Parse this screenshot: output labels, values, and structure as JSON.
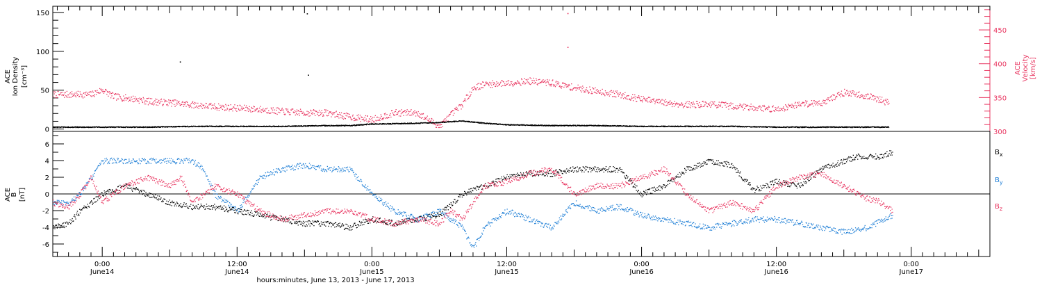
{
  "colors": {
    "density": "#000000",
    "velocity": "#e8345f",
    "bx": "#000000",
    "by": "#1f7fd6",
    "bz": "#e8345f",
    "frame": "#000000"
  },
  "x_axis": {
    "title": "hours:minutes, June 13, 2013 - June 17, 2013",
    "ticks": [
      {
        "time": "0:00",
        "date": "June14",
        "hour": 24
      },
      {
        "time": "12:00",
        "date": "June14",
        "hour": 36
      },
      {
        "time": "0:00",
        "date": "June15",
        "hour": 48
      },
      {
        "time": "12:00",
        "date": "June15",
        "hour": 60
      },
      {
        "time": "0:00",
        "date": "June16",
        "hour": 72
      },
      {
        "time": "12:00",
        "date": "June16",
        "hour": 84
      },
      {
        "time": "0:00",
        "date": "June17",
        "hour": 96
      }
    ]
  },
  "top_panel": {
    "left_label_lines": [
      "ACE",
      "Ion Density",
      "[cm⁻³]"
    ],
    "right_label_lines": [
      "ACE",
      "Velocity",
      "[km/s]"
    ],
    "left_ticks": [
      "0",
      "50",
      "100",
      "150"
    ],
    "right_ticks": [
      "300",
      "350",
      "400",
      "450"
    ]
  },
  "bottom_panel": {
    "left_label_lines": [
      "ACE",
      "B",
      "[nT]"
    ],
    "left_ticks": [
      "-6",
      "-4",
      "-2",
      "0",
      "2",
      "4",
      "6"
    ],
    "legend": [
      {
        "base": "B",
        "sub": "x",
        "color": "#000000"
      },
      {
        "base": "B",
        "sub": "y",
        "color": "#1f7fd6"
      },
      {
        "base": "B",
        "sub": "z",
        "color": "#e8345f"
      }
    ]
  },
  "chart_data": [
    {
      "type": "scatter",
      "title": "",
      "xlabel": "hours:minutes, June 13, 2013 - June 17, 2013",
      "x_unit": "hours since 2013-06-13 00:00",
      "xlim": [
        19.6,
        103
      ],
      "y_left": {
        "label": "ACE Ion Density [cm⁻³]",
        "lim": [
          -3,
          158
        ]
      },
      "y_right": {
        "label": "ACE Velocity [km/s]",
        "lim": [
          300,
          485
        ]
      },
      "series": [
        {
          "name": "Ion Density",
          "axis": "left",
          "color": "#000000",
          "x": [
            19.6,
            24,
            28,
            32,
            36,
            40,
            44,
            46,
            48,
            52,
            54,
            56,
            58,
            60,
            64,
            68,
            72,
            76,
            80,
            84,
            88,
            90,
            94
          ],
          "y": [
            3,
            3,
            3,
            4,
            4,
            4,
            5,
            5,
            7,
            8,
            9,
            11,
            8,
            6,
            5,
            5,
            4,
            4,
            4,
            3,
            3,
            3,
            3
          ],
          "outliers": [
            [
              30.9,
              87
            ],
            [
              42.3,
              70
            ],
            [
              42.2,
              149
            ]
          ]
        },
        {
          "name": "Velocity",
          "axis": "right",
          "color": "#e8345f",
          "x": [
            19.6,
            21,
            23,
            24,
            25,
            26,
            27,
            28,
            30,
            32,
            34,
            36,
            38,
            40,
            42,
            44,
            46,
            48,
            50,
            52,
            54,
            55,
            56,
            57,
            58,
            60,
            62,
            64,
            66,
            68,
            70,
            72,
            74,
            76,
            78,
            80,
            82,
            84,
            86,
            88,
            90,
            92,
            94
          ],
          "y": [
            355,
            355,
            355,
            362,
            352,
            350,
            348,
            345,
            343,
            340,
            337,
            335,
            333,
            330,
            328,
            328,
            322,
            318,
            328,
            328,
            308,
            325,
            340,
            365,
            370,
            372,
            375,
            372,
            365,
            360,
            355,
            348,
            343,
            340,
            341,
            338,
            336,
            333,
            341,
            343,
            358,
            353,
            343
          ],
          "outliers": [
            [
              65.4,
              475
            ],
            [
              65.4,
              425
            ]
          ]
        }
      ]
    },
    {
      "type": "scatter",
      "title": "",
      "ylabel": "ACE B [nT]",
      "x_unit": "hours since 2013-06-13 00:00",
      "xlim": [
        19.6,
        103
      ],
      "ylim": [
        -7.5,
        7.5
      ],
      "reference_line": 0,
      "series": [
        {
          "name": "Bx",
          "color": "#000000",
          "x": [
            19.6,
            21,
            22,
            23,
            24,
            26,
            28,
            30,
            32,
            34,
            36,
            38,
            40,
            42,
            44,
            46,
            48,
            50,
            52,
            54,
            56,
            58,
            60,
            62,
            64,
            66,
            68,
            70,
            72,
            74,
            76,
            78,
            80,
            82,
            84,
            86,
            88,
            90,
            91,
            93,
            94.3
          ],
          "y": [
            -4,
            -3.5,
            -2,
            -1,
            0,
            1,
            0,
            -1,
            -1.5,
            -1.5,
            -2,
            -2.5,
            -3,
            -3.5,
            -3.5,
            -4,
            -3,
            -3.5,
            -3,
            -2.5,
            0,
            1,
            2,
            2.5,
            2.5,
            3,
            3,
            3,
            0,
            1,
            3,
            4,
            3.5,
            0.5,
            1.5,
            1,
            3,
            4,
            4.5,
            4.5,
            5
          ]
        },
        {
          "name": "By",
          "color": "#1f7fd6",
          "x": [
            19.6,
            21,
            22,
            24,
            26,
            28,
            30,
            31,
            32,
            33,
            34,
            36,
            38,
            40,
            42,
            44,
            46,
            48,
            50,
            52,
            54,
            56,
            57,
            58,
            60,
            62,
            64,
            66,
            68,
            70,
            72,
            74,
            76,
            78,
            80,
            82,
            84,
            86,
            88,
            90,
            92,
            94.3
          ],
          "y": [
            -1,
            -1,
            0,
            4,
            4,
            4,
            4,
            4,
            4,
            3,
            0,
            -2,
            2,
            3,
            3.5,
            3,
            3,
            0,
            -2,
            -3,
            -2,
            -4,
            -6.5,
            -4,
            -2,
            -3,
            -4,
            -1,
            -2,
            -1.5,
            -2.5,
            -3,
            -3.5,
            -4,
            -3.5,
            -3,
            -3,
            -3.5,
            -4,
            -4.5,
            -4,
            -2.5
          ]
        },
        {
          "name": "Bz",
          "color": "#e8345f",
          "x": [
            19.6,
            21,
            22,
            23,
            24,
            26,
            28,
            30,
            31,
            32,
            34,
            36,
            38,
            40,
            42,
            44,
            46,
            48,
            50,
            52,
            54,
            55,
            56,
            58,
            60,
            62,
            64,
            66,
            68,
            70,
            72,
            74,
            76,
            78,
            80,
            82,
            84,
            86,
            88,
            90,
            92,
            93,
            94.3
          ],
          "y": [
            -1,
            -1.5,
            0,
            2,
            -1,
            1,
            2,
            1,
            2,
            -1,
            1,
            0,
            -2,
            -3,
            -2.5,
            -2,
            -2,
            -3,
            -3.5,
            -3,
            -3.5,
            -2,
            -3,
            1,
            1.5,
            2.5,
            3,
            0,
            1,
            1,
            2,
            3,
            0,
            -2,
            -1,
            -2,
            1,
            2,
            2.5,
            1,
            -0.5,
            -0.8,
            -2
          ]
        }
      ]
    }
  ]
}
